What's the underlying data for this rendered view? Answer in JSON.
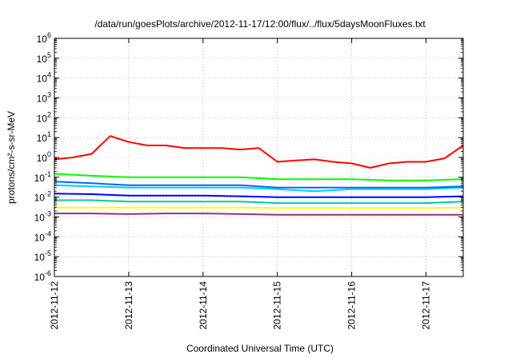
{
  "chart_data": {
    "type": "line",
    "title": "/data/run/goesPlots/archive/2012-11-17/12:00/flux/../flux/5daysMoonFluxes.txt",
    "xlabel": "Coordinated Universal Time (UTC)",
    "ylabel": "protons/cm²-s-sr-MeV",
    "yscale": "log",
    "ylim": [
      1e-06,
      1000000.0
    ],
    "xlim": [
      "2012-11-12T00:00",
      "2012-11-17T12:00"
    ],
    "grid": true,
    "legend": "none",
    "x_ticks": [
      "2012-11-12",
      "2012-11-13",
      "2012-11-14",
      "2012-11-15",
      "2012-11-16",
      "2012-11-17"
    ],
    "y_ticks": [
      {
        "base": "10",
        "exp": "6",
        "value": 1000000.0
      },
      {
        "base": "10",
        "exp": "5",
        "value": 100000.0
      },
      {
        "base": "10",
        "exp": "4",
        "value": 10000.0
      },
      {
        "base": "10",
        "exp": "3",
        "value": 1000.0
      },
      {
        "base": "10",
        "exp": "2",
        "value": 100.0
      },
      {
        "base": "10",
        "exp": "1",
        "value": 10.0
      },
      {
        "base": "10",
        "exp": "0",
        "value": 1
      },
      {
        "base": "10",
        "exp": "-1",
        "value": 0.1
      },
      {
        "base": "10",
        "exp": "-2",
        "value": 0.01
      },
      {
        "base": "10",
        "exp": "-3",
        "value": 0.001
      },
      {
        "base": "10",
        "exp": "-4",
        "value": 0.0001
      },
      {
        "base": "10",
        "exp": "-5",
        "value": 1e-05
      },
      {
        "base": "10",
        "exp": "-6",
        "value": 1e-06
      }
    ],
    "series": [
      {
        "color": "#ff0000",
        "x": [
          "2012-11-12T00:00",
          "2012-11-12T06:00",
          "2012-11-12T12:00",
          "2012-11-12T18:00",
          "2012-11-13T00:00",
          "2012-11-13T06:00",
          "2012-11-13T12:00",
          "2012-11-13T18:00",
          "2012-11-14T00:00",
          "2012-11-14T06:00",
          "2012-11-14T12:00",
          "2012-11-14T18:00",
          "2012-11-15T00:00",
          "2012-11-15T06:00",
          "2012-11-15T12:00",
          "2012-11-15T18:00",
          "2012-11-16T00:00",
          "2012-11-16T06:00",
          "2012-11-16T12:00",
          "2012-11-16T18:00",
          "2012-11-17T00:00",
          "2012-11-17T06:00",
          "2012-11-17T12:00"
        ],
        "y": [
          0.8,
          1.0,
          1.5,
          12,
          6,
          4,
          4,
          3,
          3,
          3,
          2.5,
          3,
          0.6,
          0.7,
          0.8,
          0.6,
          0.5,
          0.3,
          0.5,
          0.6,
          0.6,
          0.9,
          4
        ]
      },
      {
        "color": "#00ff00",
        "x": [
          "2012-11-12T00:00",
          "2012-11-12T12:00",
          "2012-11-13T00:00",
          "2012-11-13T12:00",
          "2012-11-14T00:00",
          "2012-11-14T12:00",
          "2012-11-15T00:00",
          "2012-11-15T12:00",
          "2012-11-16T00:00",
          "2012-11-16T12:00",
          "2012-11-17T00:00",
          "2012-11-17T12:00"
        ],
        "y": [
          0.15,
          0.12,
          0.1,
          0.1,
          0.1,
          0.1,
          0.08,
          0.08,
          0.08,
          0.07,
          0.07,
          0.08
        ]
      },
      {
        "color": "#00ccff",
        "x": [
          "2012-11-12T00:00",
          "2012-11-12T12:00",
          "2012-11-13T00:00",
          "2012-11-13T12:00",
          "2012-11-14T00:00",
          "2012-11-14T12:00",
          "2012-11-15T00:00",
          "2012-11-15T12:00",
          "2012-11-16T00:00",
          "2012-11-16T12:00",
          "2012-11-17T00:00",
          "2012-11-17T12:00"
        ],
        "y": [
          0.04,
          0.035,
          0.03,
          0.03,
          0.03,
          0.03,
          0.025,
          0.02,
          0.025,
          0.025,
          0.025,
          0.03
        ]
      },
      {
        "color": "#0066ff",
        "x": [
          "2012-11-12T00:00",
          "2012-11-12T12:00",
          "2012-11-13T00:00",
          "2012-11-13T12:00",
          "2012-11-14T00:00",
          "2012-11-14T12:00",
          "2012-11-15T00:00",
          "2012-11-15T12:00",
          "2012-11-16T00:00",
          "2012-11-16T12:00",
          "2012-11-17T00:00",
          "2012-11-17T12:00"
        ],
        "y": [
          0.06,
          0.05,
          0.04,
          0.04,
          0.04,
          0.04,
          0.03,
          0.03,
          0.03,
          0.03,
          0.03,
          0.035
        ]
      },
      {
        "color": "#0000ff",
        "x": [
          "2012-11-12T00:00",
          "2012-11-12T12:00",
          "2012-11-13T00:00",
          "2012-11-13T12:00",
          "2012-11-14T00:00",
          "2012-11-14T12:00",
          "2012-11-15T00:00",
          "2012-11-15T12:00",
          "2012-11-16T00:00",
          "2012-11-16T12:00",
          "2012-11-17T00:00",
          "2012-11-17T12:00"
        ],
        "y": [
          0.015,
          0.014,
          0.012,
          0.012,
          0.012,
          0.011,
          0.01,
          0.01,
          0.01,
          0.01,
          0.01,
          0.011
        ]
      },
      {
        "color": "#00cc99",
        "x": [
          "2012-11-12T00:00",
          "2012-11-12T12:00",
          "2012-11-13T00:00",
          "2012-11-13T12:00",
          "2012-11-14T00:00",
          "2012-11-14T12:00",
          "2012-11-15T00:00",
          "2012-11-15T12:00",
          "2012-11-16T00:00",
          "2012-11-16T12:00",
          "2012-11-17T00:00",
          "2012-11-17T12:00"
        ],
        "y": [
          0.007,
          0.007,
          0.006,
          0.006,
          0.006,
          0.006,
          0.005,
          0.005,
          0.005,
          0.005,
          0.005,
          0.006
        ]
      },
      {
        "color": "#ffff00",
        "x": [
          "2012-11-12T00:00",
          "2012-11-12T12:00",
          "2012-11-13T00:00",
          "2012-11-13T12:00",
          "2012-11-14T00:00",
          "2012-11-14T12:00",
          "2012-11-15T00:00",
          "2012-11-15T12:00",
          "2012-11-16T00:00",
          "2012-11-16T12:00",
          "2012-11-17T00:00",
          "2012-11-17T12:00"
        ],
        "y": [
          0.003,
          0.003,
          0.003,
          0.003,
          0.003,
          0.003,
          0.0028,
          0.0028,
          0.0028,
          0.0028,
          0.0028,
          0.003
        ]
      },
      {
        "color": "#993366",
        "x": [
          "2012-11-12T00:00",
          "2012-11-12T12:00",
          "2012-11-13T00:00",
          "2012-11-13T12:00",
          "2012-11-14T00:00",
          "2012-11-14T12:00",
          "2012-11-15T00:00",
          "2012-11-15T12:00",
          "2012-11-16T00:00",
          "2012-11-16T12:00",
          "2012-11-17T00:00",
          "2012-11-17T12:00"
        ],
        "y": [
          0.0015,
          0.0015,
          0.0014,
          0.0015,
          0.0015,
          0.0014,
          0.0013,
          0.0013,
          0.0013,
          0.0013,
          0.0013,
          0.0013
        ]
      }
    ]
  }
}
